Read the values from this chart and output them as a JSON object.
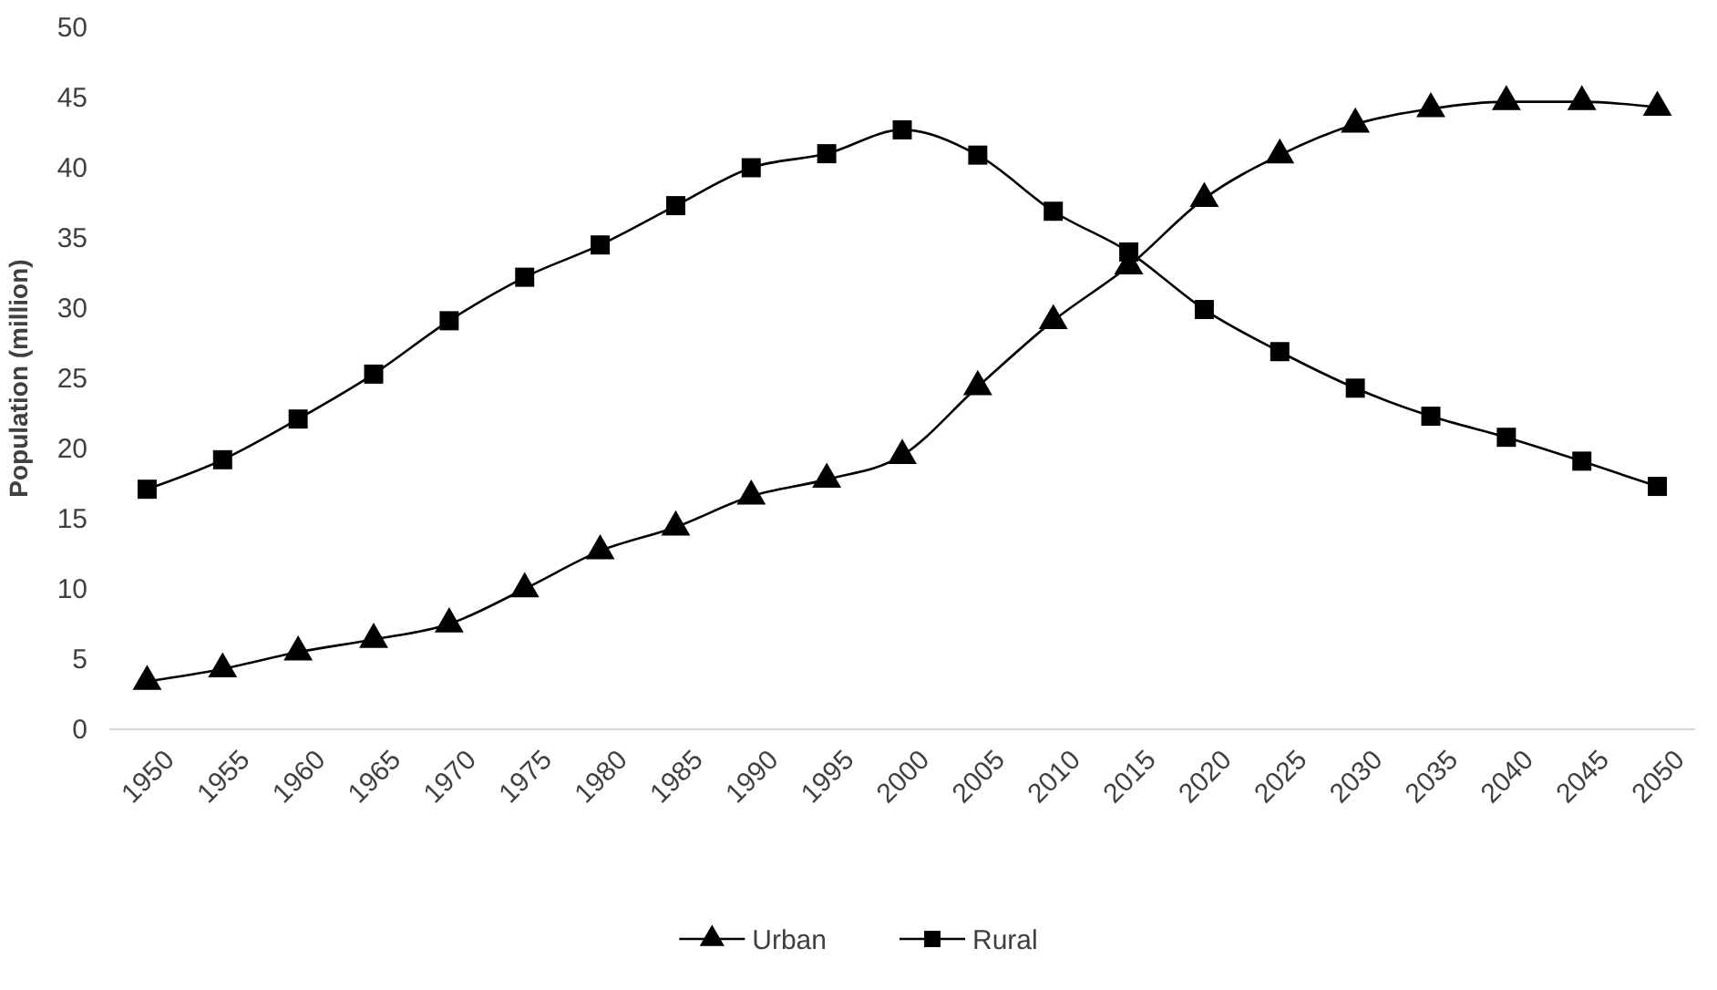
{
  "chart_data": {
    "type": "line",
    "ylabel": "Population (million)",
    "categories": [
      "1950",
      "1955",
      "1960",
      "1965",
      "1970",
      "1975",
      "1980",
      "1985",
      "1990",
      "1995",
      "2000",
      "2005",
      "2010",
      "2015",
      "2020",
      "2025",
      "2030",
      "2035",
      "2040",
      "2045",
      "2050"
    ],
    "series": [
      {
        "name": "Urban",
        "color": "#000000",
        "marker": "triangle",
        "values": [
          3.4,
          4.3,
          5.5,
          6.4,
          7.5,
          10.0,
          12.7,
          14.4,
          16.6,
          17.8,
          19.5,
          24.4,
          29.1,
          33.0,
          37.8,
          40.9,
          43.1,
          44.2,
          44.7,
          44.7,
          44.3
        ]
      },
      {
        "name": "Rural",
        "color": "#000000",
        "marker": "square",
        "values": [
          17.1,
          19.2,
          22.1,
          25.3,
          29.1,
          32.2,
          34.5,
          37.3,
          40.0,
          41.0,
          42.7,
          40.9,
          36.9,
          34.0,
          29.9,
          26.9,
          24.3,
          22.3,
          20.8,
          19.1,
          17.3
        ]
      }
    ],
    "ylim": [
      0,
      50
    ],
    "yticks": [
      0,
      5,
      10,
      15,
      20,
      25,
      30,
      35,
      40,
      45,
      50
    ],
    "grid": false,
    "legend": "bottom",
    "line_style": "solid"
  }
}
